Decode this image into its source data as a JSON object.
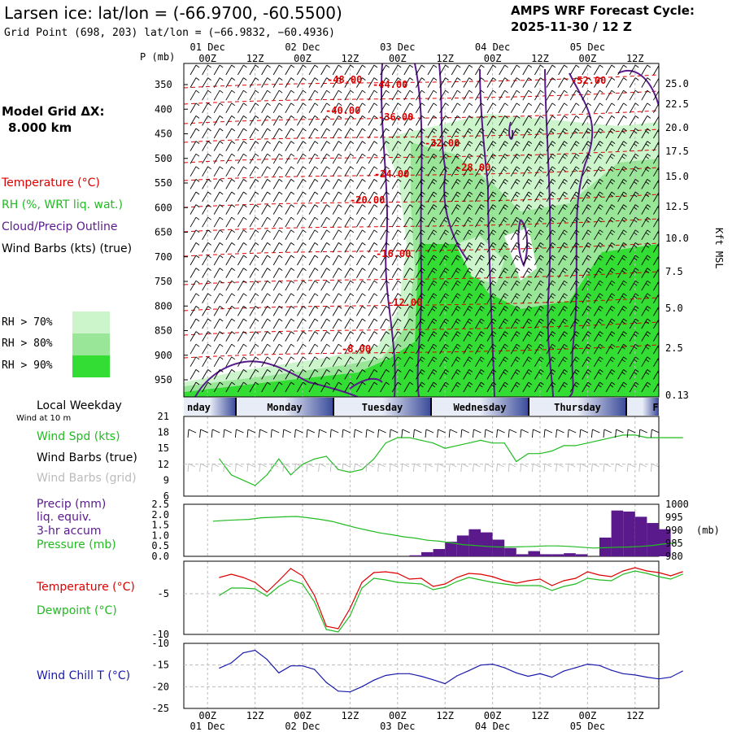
{
  "header": {
    "title": "Larsen ice:  lat/lon = (-66.9700, -60.5500)",
    "subtitle": "Grid Point (698, 203) lat/lon = (−66.9832, −60.4936)",
    "cycle_line1": "AMPS WRF Forecast Cycle:",
    "cycle_line2": "2025-11-30 / 12  Z"
  },
  "legend": {
    "model_grid_line1": "Model Grid ΔX:",
    "model_grid_line2": "8.000 km",
    "temperature": "Temperature (°C)",
    "rh": "RH (%, WRT liq. wat.)",
    "cloud": "Cloud/Precip Outline",
    "wind_barbs": "Wind Barbs (kts) (true)",
    "rh70": "RH > 70%",
    "rh80": "RH > 80%",
    "rh90": "RH > 90%",
    "local_weekday": "Local Weekday",
    "wind_at_10m": "Wind at 10 m",
    "wind_spd": "Wind Spd (kts)",
    "wind_barbs_true": "Wind Barbs (true)",
    "wind_barbs_grid": "Wind Barbs (grid)",
    "precip1": "Precip (mm)",
    "precip2": "liq. equiv.",
    "precip3": "3-hr accum",
    "pressure": "Pressure (mb)",
    "temp2": "Temperature (°C)",
    "dewpoint": "Dewpoint (°C)",
    "windchill": "Wind Chill T (°C)"
  },
  "colors": {
    "temp": "#dd0000",
    "green": "#22bb22",
    "purple": "#5a1a8c",
    "blue": "#1a1aaa",
    "rh70": "#ccf5cc",
    "rh80": "#99e699",
    "rh90": "#33dd33"
  },
  "chart_data": [
    {
      "type": "time-height",
      "title": "Larsen ice:  lat/lon = (-66.9700, -60.5500)",
      "y_label": "P (mb)",
      "y_ticks": [
        "350",
        "400",
        "450",
        "500",
        "550",
        "600",
        "650",
        "700",
        "750",
        "800",
        "850",
        "900",
        "950"
      ],
      "right_label": "Kft MSL",
      "right_ticks": [
        "25.0",
        "22.5",
        "20.0",
        "17.5",
        "15.0",
        "12.5",
        "10.0",
        "7.5",
        "5.0",
        "2.5",
        "0.13"
      ],
      "x_hours_top": [
        "00Z",
        "12Z",
        "00Z",
        "12Z",
        "00Z",
        "12Z",
        "00Z",
        "12Z",
        "00Z",
        "12Z"
      ],
      "x_dates_top": [
        "01 Dec",
        "02 Dec",
        "03 Dec",
        "04 Dec",
        "05 Dec"
      ],
      "temperature_labels": [
        "-48.00",
        "-44.00",
        "-52.00",
        "-40.00",
        "-36.00",
        "-32.00",
        "-28.00",
        "-24.00",
        "-20.00",
        "-16.00",
        "-12.00",
        "-8.00"
      ]
    },
    {
      "type": "band",
      "days": [
        "nday",
        "Monday",
        "Tuesday",
        "Wednesday",
        "Thursday",
        "F"
      ]
    },
    {
      "type": "line",
      "title": "Wind Spd (kts)",
      "ylim": [
        6,
        21
      ],
      "y_ticks": [
        "21",
        "18",
        "15",
        "12",
        "9",
        "6"
      ],
      "x": [
        0,
        3,
        6,
        9,
        12,
        15,
        18,
        21,
        24,
        27,
        30,
        33,
        36,
        39,
        42,
        45,
        48,
        51,
        54,
        57,
        60,
        63,
        66,
        69,
        72,
        75,
        78,
        81,
        84,
        87,
        90,
        93,
        96,
        99,
        102,
        105,
        108,
        111,
        114,
        117
      ],
      "values": [
        13,
        10,
        9,
        8,
        10,
        13,
        10,
        12,
        13,
        13.5,
        11,
        10.5,
        11,
        13,
        16,
        17,
        17,
        16.5,
        16,
        15,
        15.5,
        16,
        16.5,
        16,
        16,
        12.5,
        14,
        14,
        14.5,
        15.5,
        15.5,
        16,
        16.5,
        17,
        17.5,
        17.5,
        17,
        17,
        17,
        17
      ]
    },
    {
      "type": "bar+line",
      "title": "Precip (mm) / Pressure (mb)",
      "precip_ylim": [
        0,
        2.5
      ],
      "precip_ticks": [
        "2.5",
        "2.0",
        "1.5",
        "1.0",
        "0.5",
        "0.0"
      ],
      "pressure_ylim": [
        980,
        1000
      ],
      "pressure_ticks": [
        "1000",
        "995",
        "990",
        "985",
        "980"
      ],
      "right_label": "(mb)",
      "x": [
        0,
        3,
        6,
        9,
        12,
        15,
        18,
        21,
        24,
        27,
        30,
        33,
        36,
        39,
        42,
        45,
        48,
        51,
        54,
        57,
        60,
        63,
        66,
        69,
        72,
        75,
        78,
        81,
        84,
        87,
        90,
        93,
        96,
        99,
        102,
        105,
        108,
        111,
        114,
        117
      ],
      "precip": [
        0,
        0,
        0,
        0,
        0,
        0,
        0,
        0,
        0,
        0,
        0,
        0,
        0,
        0,
        0,
        0,
        0,
        0.05,
        0.2,
        0.35,
        0.7,
        1.0,
        1.3,
        1.15,
        0.8,
        0.4,
        0.1,
        0.25,
        0.1,
        0.1,
        0.15,
        0.1,
        0,
        0.9,
        2.2,
        2.15,
        1.9,
        1.6,
        1.3,
        0
      ],
      "pressure": [
        993.5,
        993.8,
        994.0,
        994.2,
        994.8,
        995.0,
        995.2,
        995.3,
        994.8,
        994.2,
        993.4,
        992.2,
        991.0,
        990.0,
        989.0,
        988.3,
        987.5,
        987.0,
        986.2,
        985.8,
        985.2,
        984.5,
        984.2,
        983.8,
        983.6,
        983.6,
        983.7,
        983.8,
        984.0,
        984.0,
        983.8,
        983.5,
        983.2,
        983.3,
        983.5,
        983.6,
        983.8,
        984.2,
        984.8,
        985.2
      ]
    },
    {
      "type": "line",
      "title": "Temperature / Dewpoint (°C)",
      "ylim": [
        -10,
        -1
      ],
      "y_ticks": [
        "-5",
        "-10"
      ],
      "x": [
        0,
        3,
        6,
        9,
        12,
        15,
        18,
        21,
        24,
        27,
        30,
        33,
        36,
        39,
        42,
        45,
        48,
        51,
        54,
        57,
        60,
        63,
        66,
        69,
        72,
        75,
        78,
        81,
        84,
        87,
        90,
        93,
        96,
        99,
        102,
        105,
        108,
        111,
        114,
        117
      ],
      "series": [
        {
          "name": "Temperature",
          "values": [
            -3.0,
            -2.6,
            -3.0,
            -3.6,
            -4.8,
            -3.4,
            -1.9,
            -2.8,
            -5.2,
            -9.0,
            -9.3,
            -6.8,
            -3.6,
            -2.4,
            -2.3,
            -2.5,
            -3.2,
            -3.1,
            -4.1,
            -3.8,
            -3.0,
            -2.5,
            -2.6,
            -2.9,
            -3.4,
            -3.7,
            -3.4,
            -3.2,
            -4.0,
            -3.4,
            -3.1,
            -2.3,
            -2.7,
            -2.9,
            -2.2,
            -1.8,
            -2.2,
            -2.4,
            -2.8,
            -2.3
          ]
        },
        {
          "name": "Dewpoint",
          "values": [
            -5.2,
            -4.3,
            -4.3,
            -4.4,
            -5.3,
            -4.1,
            -3.3,
            -3.8,
            -6.0,
            -9.4,
            -9.7,
            -7.7,
            -4.3,
            -3.1,
            -3.3,
            -3.6,
            -3.7,
            -3.8,
            -4.5,
            -4.2,
            -3.5,
            -3.0,
            -3.3,
            -3.6,
            -3.8,
            -4.0,
            -4.0,
            -4.0,
            -4.6,
            -4.1,
            -3.8,
            -3.1,
            -3.3,
            -3.4,
            -2.6,
            -2.2,
            -2.5,
            -2.9,
            -3.2,
            -2.6
          ]
        }
      ]
    },
    {
      "type": "line",
      "title": "Wind Chill T (°C)",
      "ylim": [
        -25,
        -10
      ],
      "y_ticks": [
        "-10",
        "-15",
        "-20",
        "-25"
      ],
      "x": [
        0,
        3,
        6,
        9,
        12,
        15,
        18,
        21,
        24,
        27,
        30,
        33,
        36,
        39,
        42,
        45,
        48,
        51,
        54,
        57,
        60,
        63,
        66,
        69,
        72,
        75,
        78,
        81,
        84,
        87,
        90,
        93,
        96,
        99,
        102,
        105,
        108,
        111,
        114,
        117
      ],
      "values": [
        -15.7,
        -14.5,
        -12.2,
        -11.6,
        -13.7,
        -16.8,
        -15.2,
        -15.2,
        -16.0,
        -19.0,
        -21.0,
        -21.2,
        -20.0,
        -18.5,
        -17.4,
        -17.0,
        -17.0,
        -17.6,
        -18.4,
        -19.3,
        -17.5,
        -16.3,
        -15.0,
        -14.8,
        -15.6,
        -16.8,
        -17.6,
        -17.0,
        -17.8,
        -16.4,
        -15.6,
        -14.8,
        -15.1,
        -16.2,
        -17.0,
        -17.3,
        -17.8,
        -18.2,
        -17.8,
        -16.4
      ]
    },
    {
      "type": "axis",
      "x_hours_bottom": [
        "00Z",
        "12Z",
        "00Z",
        "12Z",
        "00Z",
        "12Z",
        "00Z",
        "12Z",
        "00Z",
        "12Z"
      ],
      "x_dates_bottom": [
        "01 Dec",
        "02 Dec",
        "03 Dec",
        "04 Dec",
        "05 Dec"
      ]
    }
  ]
}
